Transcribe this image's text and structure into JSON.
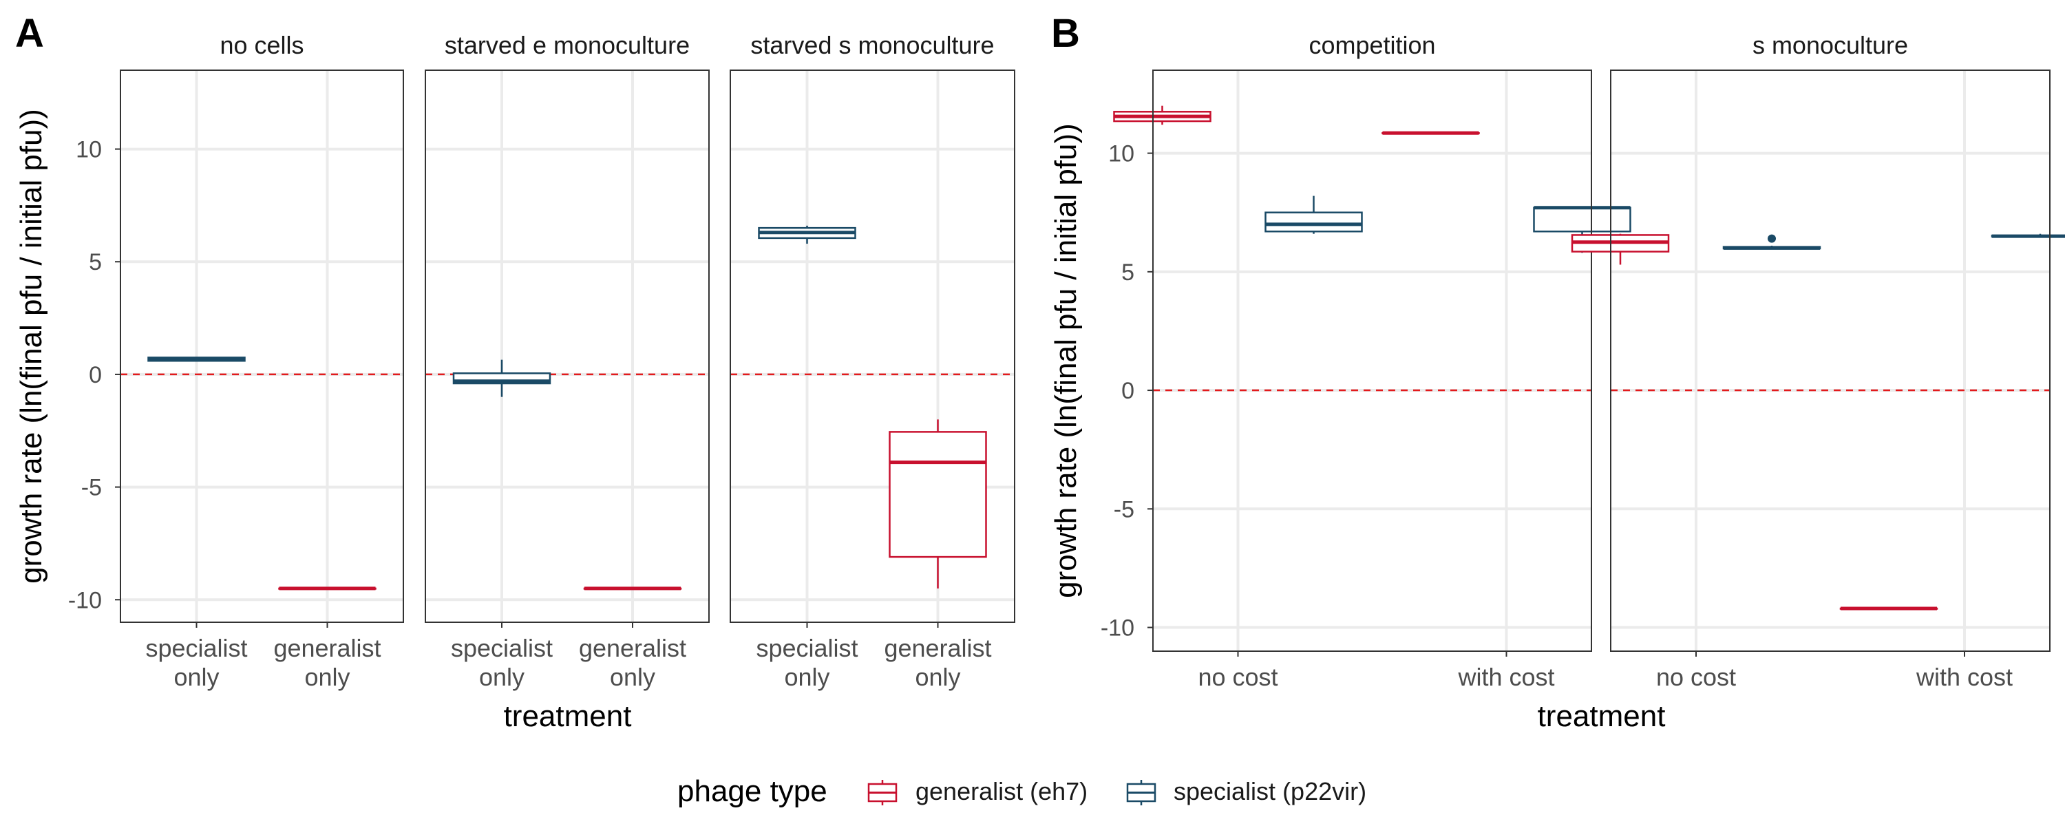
{
  "legend": {
    "title": "phage type",
    "entries": [
      "generalist (eh7)",
      "specialist (p22vir)"
    ],
    "position": "bottom"
  },
  "colors": {
    "generalist": "#C8102E",
    "specialist": "#1A4A66",
    "reference_line": "#E31A1C",
    "grid": "#EBEBEB"
  },
  "chart_data": [
    {
      "type": "box",
      "panel_label": "A",
      "xlabel": "treatment",
      "ylabel": "growth rate (ln(final pfu / initial pfu))",
      "ylim": [
        -11,
        13.5
      ],
      "yticks": [
        -10,
        -5,
        0,
        5,
        10
      ],
      "reference_line_y": 0,
      "grid": true,
      "categories": [
        [
          "specialist",
          "only"
        ],
        [
          "generalist",
          "only"
        ]
      ],
      "facets": [
        {
          "title": "no cells",
          "boxes": [
            {
              "category": 0,
              "series": "specialist (p22vir)",
              "offset": 0,
              "min": 0.58,
              "q1": 0.6,
              "median": 0.66,
              "q3": 0.75,
              "max": 0.78,
              "outliers": []
            },
            {
              "category": 1,
              "series": "generalist (eh7)",
              "offset": 0,
              "min": -9.5,
              "q1": -9.5,
              "median": -9.5,
              "q3": -9.5,
              "max": -9.5,
              "outliers": []
            }
          ]
        },
        {
          "title": "starved e monoculture",
          "boxes": [
            {
              "category": 0,
              "series": "specialist (p22vir)",
              "offset": 0,
              "min": -1.0,
              "q1": -0.4,
              "median": -0.3,
              "q3": 0.05,
              "max": 0.65,
              "outliers": []
            },
            {
              "category": 1,
              "series": "generalist (eh7)",
              "offset": 0,
              "min": -9.5,
              "q1": -9.5,
              "median": -9.5,
              "q3": -9.5,
              "max": -9.5,
              "outliers": []
            }
          ]
        },
        {
          "title": "starved s monoculture",
          "boxes": [
            {
              "category": 0,
              "series": "specialist (p22vir)",
              "offset": 0,
              "min": 5.8,
              "q1": 6.05,
              "median": 6.3,
              "q3": 6.5,
              "max": 6.6,
              "outliers": []
            },
            {
              "category": 1,
              "series": "generalist (eh7)",
              "offset": 0,
              "min": -9.5,
              "q1": -8.1,
              "median": -3.9,
              "q3": -2.55,
              "max": -2.0,
              "outliers": []
            }
          ]
        }
      ]
    },
    {
      "type": "box",
      "panel_label": "B",
      "xlabel": "treatment",
      "ylabel": "growth rate (ln(final pfu / initial pfu))",
      "ylim": [
        -11,
        13.5
      ],
      "yticks": [
        -10,
        -5,
        0,
        5,
        10
      ],
      "reference_line_y": 0,
      "grid": true,
      "categories": [
        [
          "no cost"
        ],
        [
          "with cost"
        ]
      ],
      "facets": [
        {
          "title": "competition",
          "boxes": [
            {
              "category": 0,
              "series": "generalist (eh7)",
              "offset": -1,
              "min": 11.2,
              "q1": 11.35,
              "median": 11.55,
              "q3": 11.75,
              "max": 12.0,
              "outliers": []
            },
            {
              "category": 0,
              "series": "specialist (p22vir)",
              "offset": 1,
              "min": 6.6,
              "q1": 6.7,
              "median": 7.0,
              "q3": 7.5,
              "max": 8.2,
              "outliers": []
            },
            {
              "category": 1,
              "series": "generalist (eh7)",
              "offset": -1,
              "min": 10.85,
              "q1": 10.85,
              "median": 10.85,
              "q3": 10.85,
              "max": 10.85,
              "outliers": []
            },
            {
              "category": 1,
              "series": "specialist (p22vir)",
              "offset": 1,
              "min": 5.8,
              "q1": 6.7,
              "median": 7.7,
              "q3": 7.7,
              "max": 7.7,
              "outliers": []
            }
          ]
        },
        {
          "title": "s monoculture",
          "boxes": [
            {
              "category": 0,
              "series": "generalist (eh7)",
              "offset": -1,
              "min": 5.3,
              "q1": 5.85,
              "median": 6.25,
              "q3": 6.55,
              "max": 6.6,
              "outliers": []
            },
            {
              "category": 0,
              "series": "specialist (p22vir)",
              "offset": 1,
              "min": 5.95,
              "q1": 5.98,
              "median": 6.0,
              "q3": 6.05,
              "max": 6.1,
              "outliers": [
                6.4
              ]
            },
            {
              "category": 1,
              "series": "generalist (eh7)",
              "offset": -1,
              "min": -9.2,
              "q1": -9.2,
              "median": -9.2,
              "q3": -9.2,
              "max": -9.2,
              "outliers": []
            },
            {
              "category": 1,
              "series": "specialist (p22vir)",
              "offset": 1,
              "min": 6.45,
              "q1": 6.48,
              "median": 6.5,
              "q3": 6.53,
              "max": 6.6,
              "outliers": []
            }
          ]
        }
      ]
    }
  ]
}
